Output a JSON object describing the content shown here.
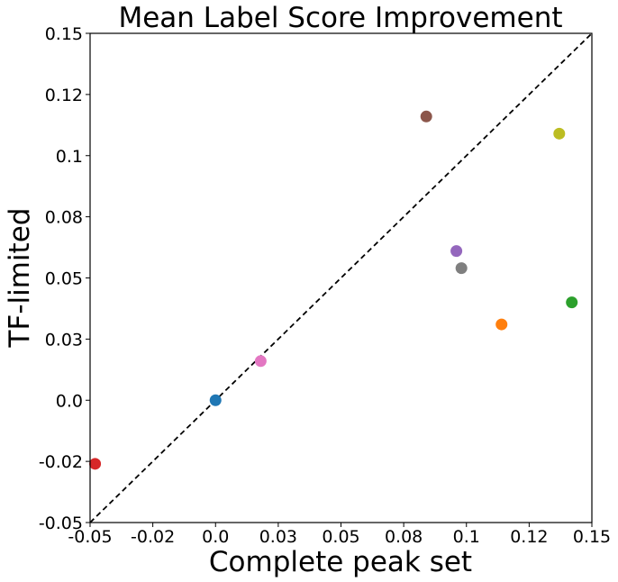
{
  "chart_data": {
    "type": "scatter",
    "title": "Mean Label Score Improvement",
    "xlabel": "Complete peak set",
    "ylabel": "TF-limited",
    "xlim": [
      -0.05,
      0.15
    ],
    "ylim": [
      -0.05,
      0.15
    ],
    "x_tick_values": [
      -0.05,
      -0.025,
      0.0,
      0.025,
      0.05,
      0.075,
      0.1,
      0.125,
      0.15
    ],
    "x_tick_labels": [
      "-0.05",
      "-0.02",
      "0.0",
      "0.03",
      "0.05",
      "0.08",
      "0.1",
      "0.12",
      "0.15"
    ],
    "y_tick_values": [
      -0.05,
      -0.025,
      0.0,
      0.025,
      0.05,
      0.075,
      0.1,
      0.125,
      0.15
    ],
    "y_tick_labels": [
      "-0.05",
      "-0.02",
      "0.0",
      "0.03",
      "0.05",
      "0.08",
      "0.1",
      "0.12",
      "0.15"
    ],
    "grid": false,
    "reference_line": {
      "style": "dashed",
      "color": "#000000",
      "from": [
        -0.05,
        -0.05
      ],
      "to": [
        0.15,
        0.15
      ]
    },
    "points": [
      {
        "x": 0.0,
        "y": 0.0,
        "color": "#1f77b4"
      },
      {
        "x": 0.114,
        "y": 0.031,
        "color": "#ff7f0e"
      },
      {
        "x": 0.142,
        "y": 0.04,
        "color": "#2ca02c"
      },
      {
        "x": -0.048,
        "y": -0.026,
        "color": "#d62728"
      },
      {
        "x": 0.096,
        "y": 0.061,
        "color": "#9467bd"
      },
      {
        "x": 0.084,
        "y": 0.116,
        "color": "#8c564b"
      },
      {
        "x": 0.018,
        "y": 0.016,
        "color": "#e377c2"
      },
      {
        "x": 0.098,
        "y": 0.054,
        "color": "#7f7f7f"
      },
      {
        "x": 0.137,
        "y": 0.109,
        "color": "#bcbd22"
      }
    ]
  }
}
